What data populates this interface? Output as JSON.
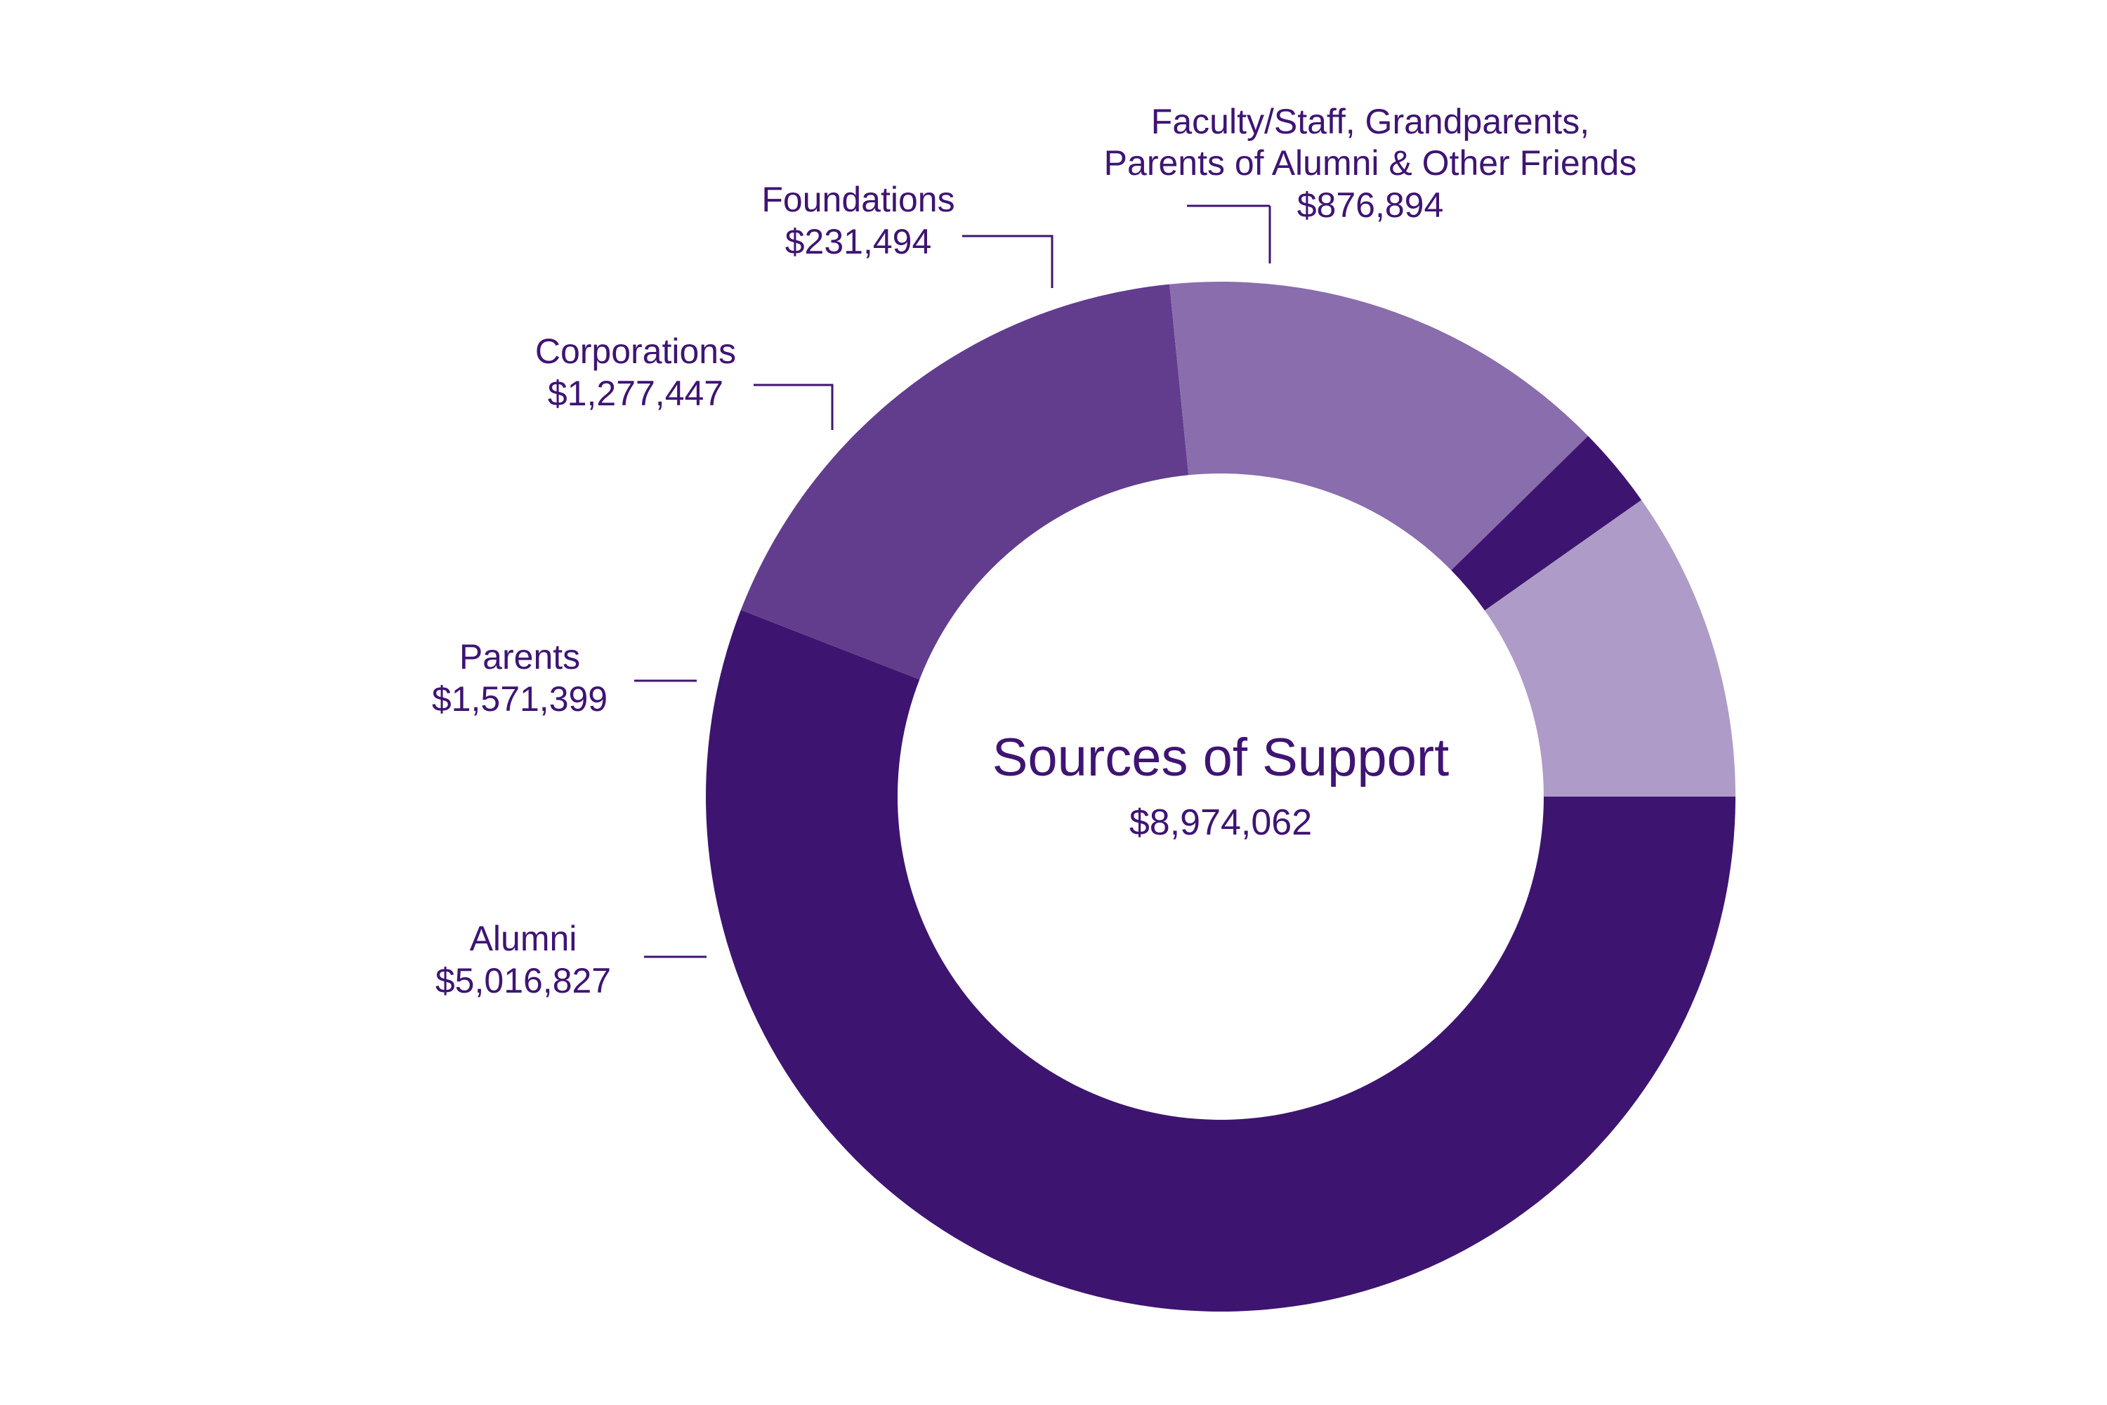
{
  "chart_data": {
    "type": "pie",
    "style": "donut",
    "title": "Sources of Support",
    "total": "$8,974,062",
    "slices": [
      {
        "name": "Alumni",
        "value": 5016827,
        "value_label": "$5,016,827",
        "color": "#3d1570"
      },
      {
        "name": "Parents",
        "value": 1571399,
        "value_label": "$1,571,399",
        "color": "#623d8d"
      },
      {
        "name": "Corporations",
        "value": 1277447,
        "value_label": "$1,277,447",
        "color": "#8a6dad"
      },
      {
        "name": "Foundations",
        "value": 231494,
        "value_label": "$231,494",
        "color": "#3d1570"
      },
      {
        "name": "Faculty/Staff, Grandparents,\nParents of Alumni & Other Friends",
        "value": 876894,
        "value_label": "$876,894",
        "color": "#ae9bc7"
      }
    ]
  }
}
